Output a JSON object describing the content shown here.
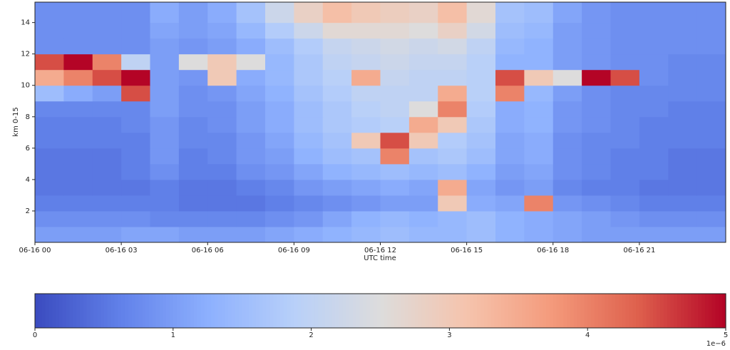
{
  "chart_data": {
    "type": "heatmap",
    "xlabel": "UTC time",
    "ylabel": "km 0-15",
    "xlim": [
      0,
      24
    ],
    "xticks": [
      {
        "value": 0,
        "label": "06-16 00"
      },
      {
        "value": 3,
        "label": "06-16 03"
      },
      {
        "value": 6,
        "label": "06-16 06"
      },
      {
        "value": 9,
        "label": "06-16 09"
      },
      {
        "value": 12,
        "label": "06-16 12"
      },
      {
        "value": 15,
        "label": "06-16 15"
      },
      {
        "value": 18,
        "label": "06-16 18"
      },
      {
        "value": 21,
        "label": "06-16 21"
      }
    ],
    "ylim": [
      0,
      15.3
    ],
    "yticks": [
      2,
      4,
      6,
      8,
      10,
      12,
      14
    ],
    "x_edges": [
      0,
      1,
      2,
      3,
      4,
      5,
      6,
      7,
      8,
      9,
      10,
      11,
      12,
      13,
      14,
      15,
      16,
      17,
      18,
      19,
      20,
      21,
      22,
      23,
      24
    ],
    "y_edges": [
      0,
      1,
      2,
      3,
      4,
      5,
      6,
      7,
      8,
      9,
      10,
      11,
      12,
      13,
      14,
      15.3
    ],
    "z": [
      [
        1.0,
        1.0,
        1.0,
        1.1,
        1.1,
        1.0,
        1.0,
        1.0,
        1.1,
        1.2,
        1.3,
        1.4,
        1.5,
        1.4,
        1.4,
        1.5,
        1.3,
        1.2,
        1.1,
        1.0,
        1.0,
        1.0,
        1.0,
        1.0
      ],
      [
        0.8,
        0.8,
        0.8,
        0.8,
        0.7,
        0.7,
        0.7,
        0.7,
        0.8,
        0.9,
        1.1,
        1.3,
        1.4,
        1.3,
        1.4,
        1.5,
        1.3,
        1.2,
        1.1,
        1.0,
        0.9,
        0.8,
        0.8,
        0.8
      ],
      [
        0.6,
        0.6,
        0.6,
        0.6,
        0.6,
        0.5,
        0.5,
        0.5,
        0.6,
        0.7,
        0.8,
        0.9,
        1.0,
        1.0,
        3.0,
        1.2,
        1.1,
        4.0,
        0.9,
        0.8,
        0.7,
        0.6,
        0.6,
        0.6
      ],
      [
        0.5,
        0.5,
        0.5,
        0.5,
        0.6,
        0.5,
        0.5,
        0.6,
        0.7,
        0.9,
        1.0,
        1.1,
        1.2,
        1.1,
        3.5,
        1.1,
        0.9,
        1.0,
        0.7,
        0.6,
        0.6,
        0.5,
        0.5,
        0.5
      ],
      [
        0.5,
        0.5,
        0.5,
        0.6,
        0.8,
        0.6,
        0.6,
        0.8,
        0.9,
        1.1,
        1.3,
        1.4,
        1.5,
        1.4,
        1.5,
        1.3,
        1.0,
        1.1,
        0.8,
        0.7,
        0.6,
        0.6,
        0.5,
        0.5
      ],
      [
        0.5,
        0.5,
        0.5,
        0.6,
        0.9,
        0.6,
        0.7,
        0.9,
        1.0,
        1.3,
        1.5,
        1.6,
        4.0,
        1.6,
        1.7,
        1.5,
        1.1,
        1.2,
        0.8,
        0.7,
        0.6,
        0.6,
        0.5,
        0.5
      ],
      [
        0.6,
        0.6,
        0.6,
        0.6,
        0.9,
        0.7,
        0.7,
        0.9,
        1.1,
        1.4,
        1.6,
        3.0,
        4.5,
        3.0,
        1.8,
        1.6,
        1.1,
        1.2,
        0.8,
        0.7,
        0.7,
        0.6,
        0.6,
        0.6
      ],
      [
        0.6,
        0.6,
        0.6,
        0.7,
        0.9,
        0.7,
        0.8,
        1.0,
        1.2,
        1.5,
        1.7,
        1.8,
        1.9,
        3.5,
        3.0,
        1.7,
        1.2,
        1.3,
        0.9,
        0.8,
        0.7,
        0.6,
        0.6,
        0.6
      ],
      [
        0.7,
        0.7,
        0.7,
        0.7,
        1.0,
        0.8,
        0.8,
        1.0,
        1.2,
        1.5,
        1.7,
        1.9,
        2.0,
        2.5,
        4.0,
        1.8,
        1.2,
        1.3,
        0.9,
        0.8,
        0.7,
        0.7,
        0.6,
        0.6
      ],
      [
        1.5,
        1.2,
        1.0,
        4.5,
        1.0,
        0.8,
        0.9,
        1.1,
        1.3,
        1.6,
        1.8,
        2.0,
        2.0,
        2.0,
        3.5,
        1.9,
        4.0,
        1.4,
        1.0,
        0.8,
        0.7,
        0.7,
        0.7,
        0.7
      ],
      [
        3.5,
        4.0,
        4.5,
        5.0,
        1.0,
        0.9,
        3.0,
        1.2,
        1.4,
        1.7,
        1.9,
        3.5,
        2.1,
        2.0,
        2.0,
        1.9,
        4.5,
        3.0,
        2.5,
        5.0,
        4.5,
        0.8,
        0.7,
        0.7
      ],
      [
        4.5,
        5.0,
        4.0,
        2.0,
        1.0,
        2.5,
        3.0,
        2.5,
        1.4,
        1.7,
        2.0,
        2.1,
        2.2,
        2.1,
        2.1,
        1.9,
        1.3,
        1.3,
        1.0,
        0.9,
        0.8,
        0.8,
        0.7,
        0.7
      ],
      [
        0.8,
        0.8,
        0.8,
        0.8,
        1.0,
        0.9,
        1.0,
        1.2,
        1.5,
        1.8,
        2.1,
        2.2,
        2.3,
        2.2,
        2.3,
        2.0,
        1.4,
        1.3,
        1.0,
        0.9,
        0.8,
        0.8,
        0.8,
        0.8
      ],
      [
        0.8,
        0.8,
        0.8,
        0.8,
        1.1,
        1.0,
        1.1,
        1.4,
        1.8,
        2.2,
        2.6,
        2.6,
        2.6,
        2.5,
        2.8,
        2.3,
        1.5,
        1.4,
        1.0,
        0.9,
        0.8,
        0.8,
        0.8,
        0.8
      ],
      [
        0.8,
        0.8,
        0.8,
        0.8,
        1.2,
        1.0,
        1.2,
        1.6,
        2.2,
        2.8,
        3.2,
        3.0,
        2.9,
        2.8,
        3.2,
        2.6,
        1.6,
        1.5,
        1.1,
        0.9,
        0.8,
        0.8,
        0.8,
        0.8
      ]
    ],
    "colormap": "coolwarm",
    "colorbar": {
      "lim": [
        0,
        5
      ],
      "ticks": [
        0,
        1,
        2,
        3,
        4,
        5
      ],
      "offset_label": "1e−6"
    }
  }
}
